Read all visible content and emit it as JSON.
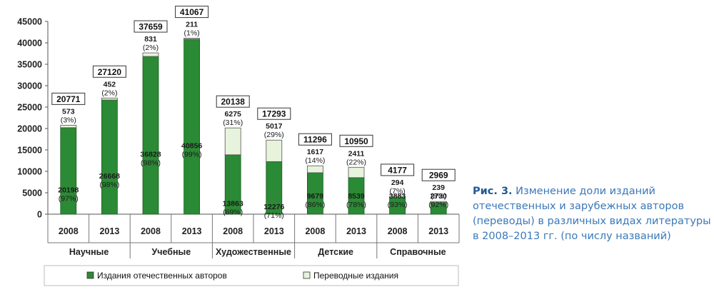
{
  "caption": {
    "label": "Рис. 3.",
    "text": "Изменение доли изданий отечественных и зарубежных авторов (переводы) в различных видах литературы в 2008–2013 гг. (по числу названий)"
  },
  "chart_data": {
    "type": "bar",
    "stacked": true,
    "ylim": [
      0,
      45000
    ],
    "yticks": [
      "0",
      "5000",
      "10000",
      "15000",
      "20000",
      "25000",
      "30000",
      "35000",
      "40000",
      "45000"
    ],
    "groups": [
      "Научные",
      "Учебные",
      "Художественные",
      "Детские",
      "Справочные"
    ],
    "years": [
      "2008",
      "2013"
    ],
    "bars": [
      {
        "group": "Научные",
        "year": "2008",
        "domestic": 20198,
        "domestic_pct": "(97%)",
        "translated": 573,
        "translated_pct": "(3%)",
        "total": "20771"
      },
      {
        "group": "Научные",
        "year": "2013",
        "domestic": 26668,
        "domestic_pct": "(98%)",
        "translated": 452,
        "translated_pct": "(2%)",
        "total": "27120"
      },
      {
        "group": "Учебные",
        "year": "2008",
        "domestic": 36828,
        "domestic_pct": "(98%)",
        "translated": 831,
        "translated_pct": "(2%)",
        "total": "37659"
      },
      {
        "group": "Учебные",
        "year": "2013",
        "domestic": 40856,
        "domestic_pct": "(99%)",
        "translated": 211,
        "translated_pct": "(1%)",
        "total": "41067"
      },
      {
        "group": "Художественные",
        "year": "2008",
        "domestic": 13863,
        "domestic_pct": "(69%)",
        "translated": 6275,
        "translated_pct": "(31%)",
        "total": "20138"
      },
      {
        "group": "Художественные",
        "year": "2013",
        "domestic": 12276,
        "domestic_pct": "(71%)",
        "translated": 5017,
        "translated_pct": "(29%)",
        "total": "17293"
      },
      {
        "group": "Детские",
        "year": "2008",
        "domestic": 9679,
        "domestic_pct": "(86%)",
        "translated": 1617,
        "translated_pct": "(14%)",
        "total": "11296"
      },
      {
        "group": "Детские",
        "year": "2013",
        "domestic": 8539,
        "domestic_pct": "(78%)",
        "translated": 2411,
        "translated_pct": "(22%)",
        "total": "10950"
      },
      {
        "group": "Справочные",
        "year": "2008",
        "domestic": 3883,
        "domestic_pct": "(93%)",
        "translated": 294,
        "translated_pct": "(7%)",
        "total": "4177"
      },
      {
        "group": "Справочные",
        "year": "2013",
        "domestic": 2730,
        "domestic_pct": "(92%)",
        "translated": 239,
        "translated_pct": "(8%)",
        "total": "2969"
      }
    ],
    "legend": [
      {
        "name": "Издания отечественных авторов",
        "color": "#2b8a35"
      },
      {
        "name": "Переводные издания",
        "color": "#e7f3dc"
      }
    ],
    "legend_position": "bottom"
  }
}
